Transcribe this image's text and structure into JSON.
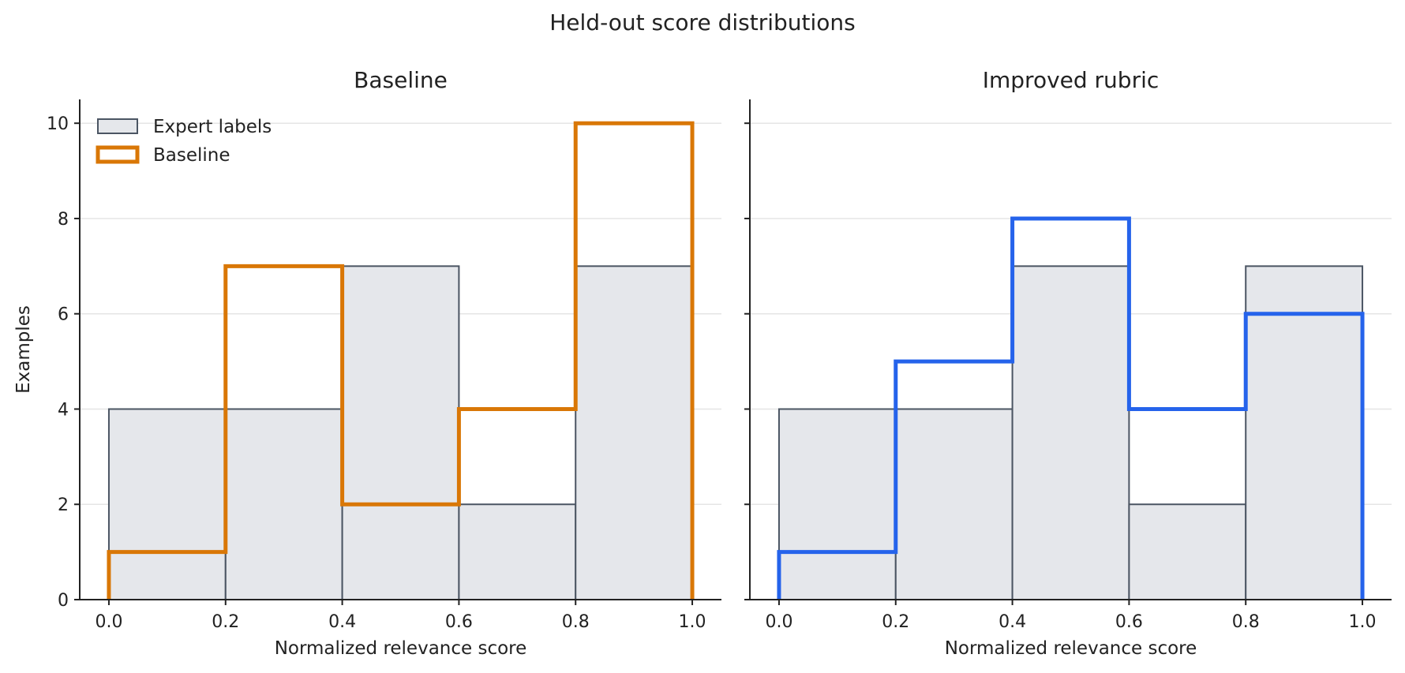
{
  "title": "Held-out score distributions",
  "colors": {
    "expert_fill": "#e5e7eb",
    "expert_edge": "#4b5563",
    "baseline": "#d97706",
    "improved": "#2563eb",
    "grid": "#e5e5e5",
    "axis": "#222222"
  },
  "chart_data": [
    {
      "type": "bar",
      "title": "Baseline",
      "xlabel": "Normalized relevance score",
      "ylabel": "Examples",
      "bin_edges": [
        0.0,
        0.2,
        0.4,
        0.6,
        0.8,
        1.0
      ],
      "xlim": [
        -0.05,
        1.05
      ],
      "ylim": [
        0,
        10.5
      ],
      "xticks": [
        "0.0",
        "0.2",
        "0.4",
        "0.6",
        "0.8",
        "1.0"
      ],
      "yticks": [
        "0",
        "2",
        "4",
        "6",
        "8",
        "10"
      ],
      "grid": "y",
      "legend": "top-left",
      "series": [
        {
          "name": "Expert labels",
          "style": "filled",
          "values": [
            4,
            4,
            7,
            2,
            7
          ]
        },
        {
          "name": "Baseline",
          "style": "step",
          "values": [
            1,
            7,
            2,
            4,
            10
          ]
        }
      ]
    },
    {
      "type": "bar",
      "title": "Improved rubric",
      "xlabel": "Normalized relevance score",
      "bin_edges": [
        0.0,
        0.2,
        0.4,
        0.6,
        0.8,
        1.0
      ],
      "xlim": [
        -0.05,
        1.05
      ],
      "ylim": [
        0,
        10.5
      ],
      "xticks": [
        "0.0",
        "0.2",
        "0.4",
        "0.6",
        "0.8",
        "1.0"
      ],
      "grid": "y",
      "series": [
        {
          "name": "Expert labels",
          "style": "filled",
          "values": [
            4,
            4,
            7,
            2,
            7
          ]
        },
        {
          "name": "Improved rubric",
          "style": "step",
          "values": [
            1,
            5,
            8,
            4,
            6
          ]
        }
      ]
    }
  ]
}
